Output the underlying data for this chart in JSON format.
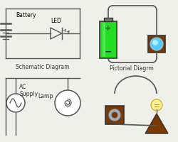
{
  "bg_color": "#f0f0eb",
  "labels": {
    "schematic": "Schematic Diagram",
    "pictorial": "Pictorial Diagrm",
    "ac_supply": "AC\nSupply",
    "lamp": "Lamp",
    "led": "LED",
    "battery": "Battery"
  },
  "colors": {
    "battery_green": "#22dd22",
    "battery_green_light": "#66ee66",
    "battery_dark": "#555555",
    "bulb_blue": "#55ccff",
    "bulb_blue_light": "#aaeeff",
    "bulb_brown": "#7B3800",
    "wire": "#555555",
    "triangle_brown": "#7B3800",
    "bg_white": "#ffffff",
    "gray_cap": "#888888"
  }
}
